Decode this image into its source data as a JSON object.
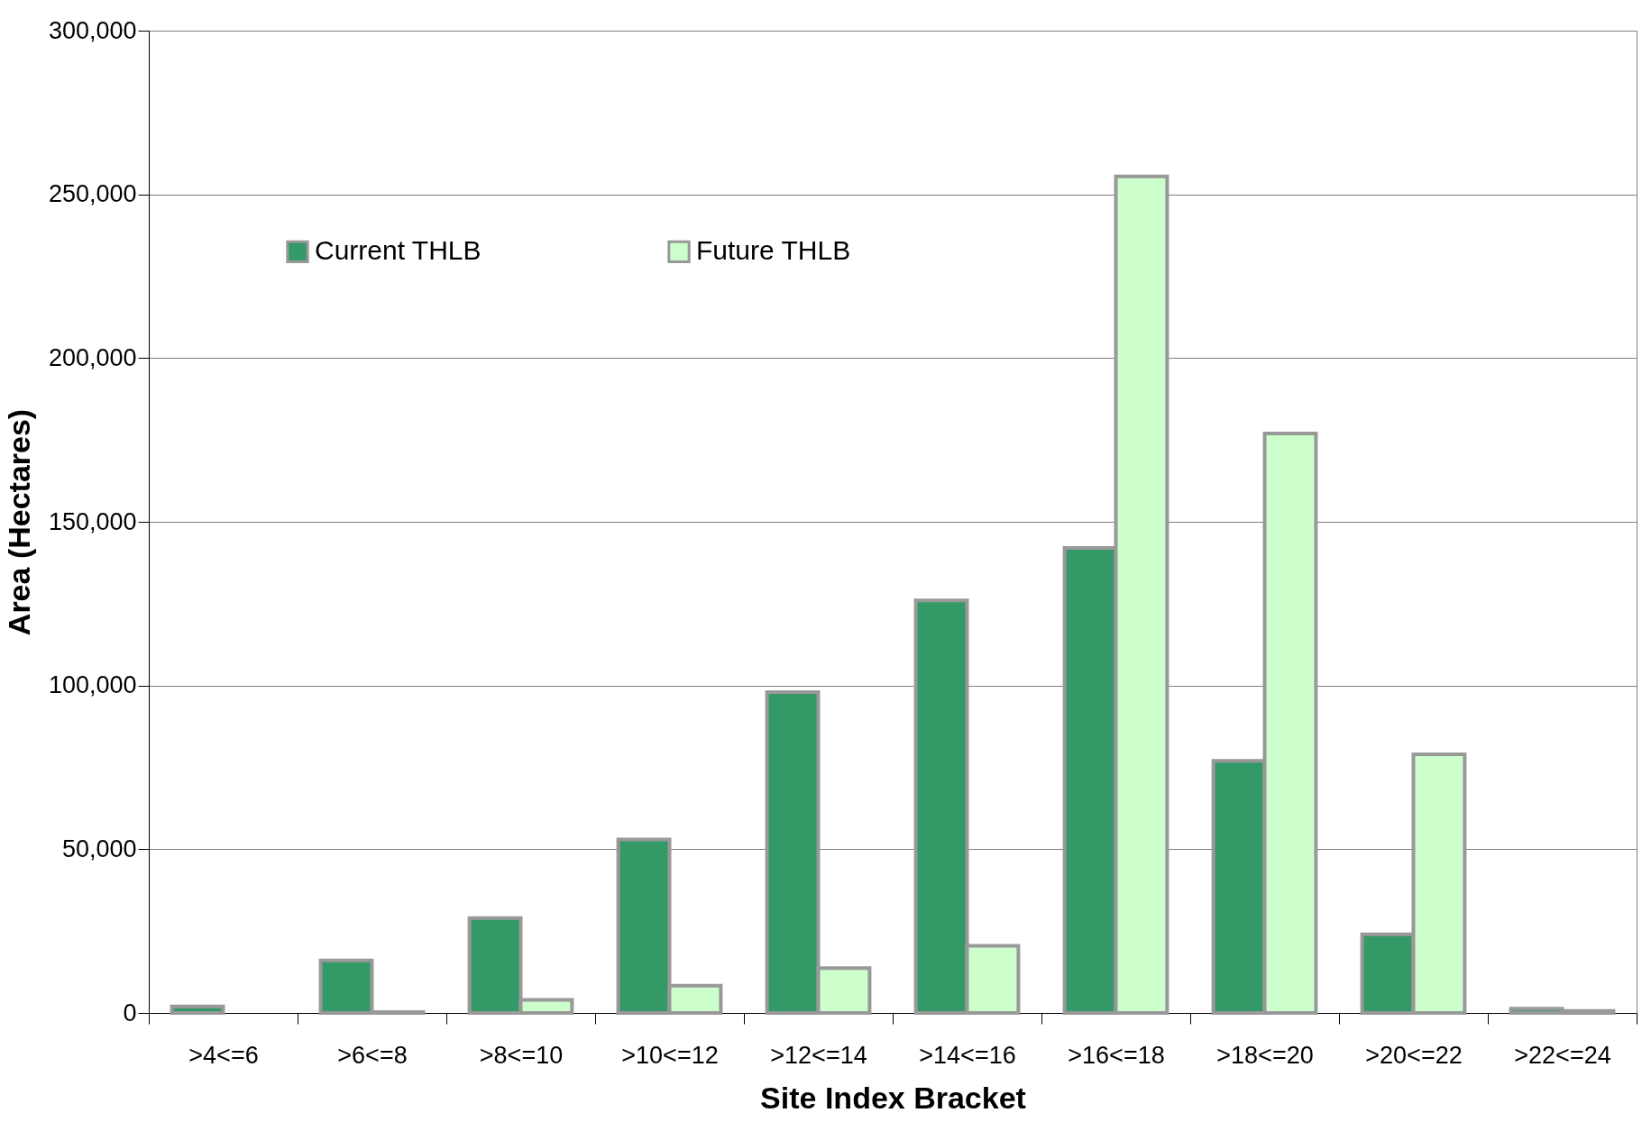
{
  "chart_data": {
    "type": "bar",
    "xlabel": "Site Index Bracket",
    "ylabel": "Area (Hectares)",
    "categories": [
      ">4<=6",
      ">6<=8",
      ">8<=10",
      ">10<=12",
      ">12<=14",
      ">14<=16",
      ">16<=18",
      ">18<=20",
      ">20<=22",
      ">22<=24"
    ],
    "series": [
      {
        "name": "Current THLB",
        "color": "#339966",
        "values": [
          2000,
          16000,
          29000,
          53000,
          98000,
          126000,
          142000,
          77000,
          24000,
          1300
        ]
      },
      {
        "name": "Future THLB",
        "color": "#ccffcc",
        "values": [
          null,
          300,
          4000,
          8300,
          13700,
          20500,
          255500,
          177000,
          79000,
          600
        ]
      }
    ],
    "ylim": [
      0,
      300000
    ],
    "yticks": [
      {
        "value": 0,
        "label": "0"
      },
      {
        "value": 50000,
        "label": "50,000"
      },
      {
        "value": 100000,
        "label": "100,000"
      },
      {
        "value": 150000,
        "label": "150,000"
      },
      {
        "value": 200000,
        "label": "200,000"
      },
      {
        "value": 250000,
        "label": "250,000"
      },
      {
        "value": 300000,
        "label": "300,000"
      }
    ],
    "grid": "y",
    "legend": "top left"
  }
}
